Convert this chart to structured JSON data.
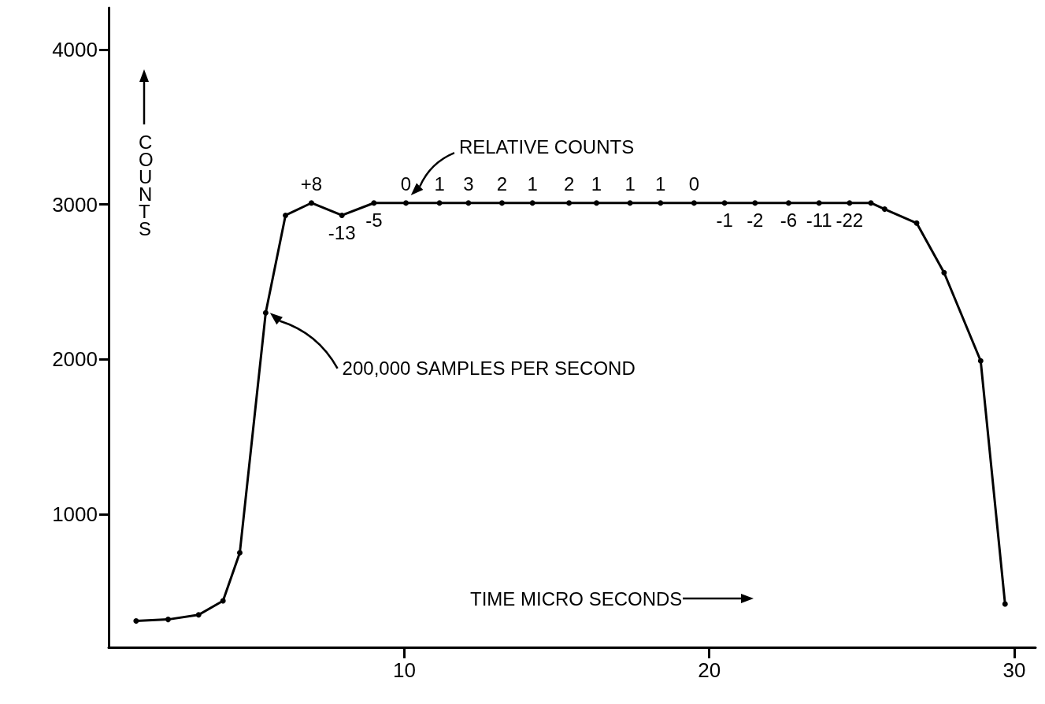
{
  "chart_data": {
    "type": "line",
    "xlabel": "TIME MICRO SECONDS",
    "ylabel": "COUNTS",
    "x": [
      1.2,
      2.25,
      3.25,
      4.05,
      4.6,
      5.45,
      6.1,
      6.95,
      7.95,
      9,
      10.05,
      11.15,
      12.1,
      13.2,
      14.2,
      15.4,
      16.3,
      17.4,
      18.4,
      19.5,
      20.5,
      21.5,
      22.6,
      23.6,
      24.6,
      25.3,
      25.75,
      26.8,
      27.7,
      28.9,
      29.7
    ],
    "series": [
      {
        "color": "#000000",
        "values": [
          310,
          320,
          350,
          440,
          750,
          2300,
          2930,
          3010,
          2930,
          3010,
          3010,
          3010,
          3010,
          3010,
          3010,
          3010,
          3010,
          3010,
          3010,
          3010,
          3010,
          3010,
          3010,
          3010,
          3010,
          3010,
          2970,
          2880,
          2560,
          1990,
          420
        ]
      }
    ],
    "xlim": [
      0.3,
      30.7
    ],
    "ylim": [
      140,
      4270
    ],
    "xticks": [
      10,
      20,
      30
    ],
    "yticks": [
      1000,
      2000,
      3000,
      4000
    ],
    "grid": false,
    "marker": "circle",
    "line_style": "solid",
    "annotations": [
      "RELATIVE COUNTS",
      "200,000 SAMPLES PER SECOND",
      {
        "text": "+8",
        "x": 6.95,
        "y": 3010
      },
      {
        "text": "-13",
        "x": 7.95,
        "y": 2930
      },
      {
        "text": "-5",
        "x": 9,
        "y": 3010
      },
      {
        "text": "0",
        "x": 10.05,
        "y": 3010
      },
      {
        "text": "1",
        "x": 11.15,
        "y": 3010
      },
      {
        "text": "3",
        "x": 12.1,
        "y": 3010
      },
      {
        "text": "2",
        "x": 13.2,
        "y": 3010
      },
      {
        "text": "1",
        "x": 14.2,
        "y": 3010
      },
      {
        "text": "2",
        "x": 15.4,
        "y": 3010
      },
      {
        "text": "1",
        "x": 16.3,
        "y": 3010
      },
      {
        "text": "1",
        "x": 17.4,
        "y": 3010
      },
      {
        "text": "1",
        "x": 18.4,
        "y": 3010
      },
      {
        "text": "0",
        "x": 19.5,
        "y": 3010
      },
      {
        "text": "-1",
        "x": 20.5,
        "y": 3010
      },
      {
        "text": "-2",
        "x": 21.5,
        "y": 3010
      },
      {
        "text": "-6",
        "x": 22.6,
        "y": 3010
      },
      {
        "text": "-11",
        "x": 23.6,
        "y": 3010
      },
      {
        "text": "-22",
        "x": 24.6,
        "y": 3010
      }
    ]
  }
}
